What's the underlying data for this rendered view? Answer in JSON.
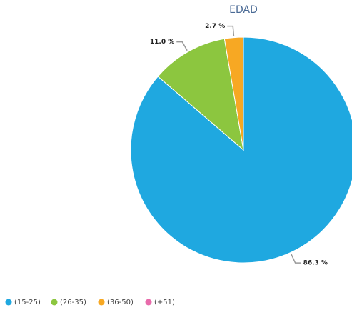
{
  "chart_data": {
    "type": "pie",
    "title": "EDAD",
    "categories": [
      "(15-25)",
      "(26-35)",
      "(36-50)",
      "(+51)"
    ],
    "values": [
      86.3,
      11.0,
      2.7,
      0
    ],
    "value_labels": [
      "86.3 %",
      "11.0 %",
      "2.7 %",
      null
    ],
    "colors": [
      "#1fa8e0",
      "#8cc63f",
      "#f7a823",
      "#e86bab"
    ],
    "legend": "bottom-left"
  }
}
